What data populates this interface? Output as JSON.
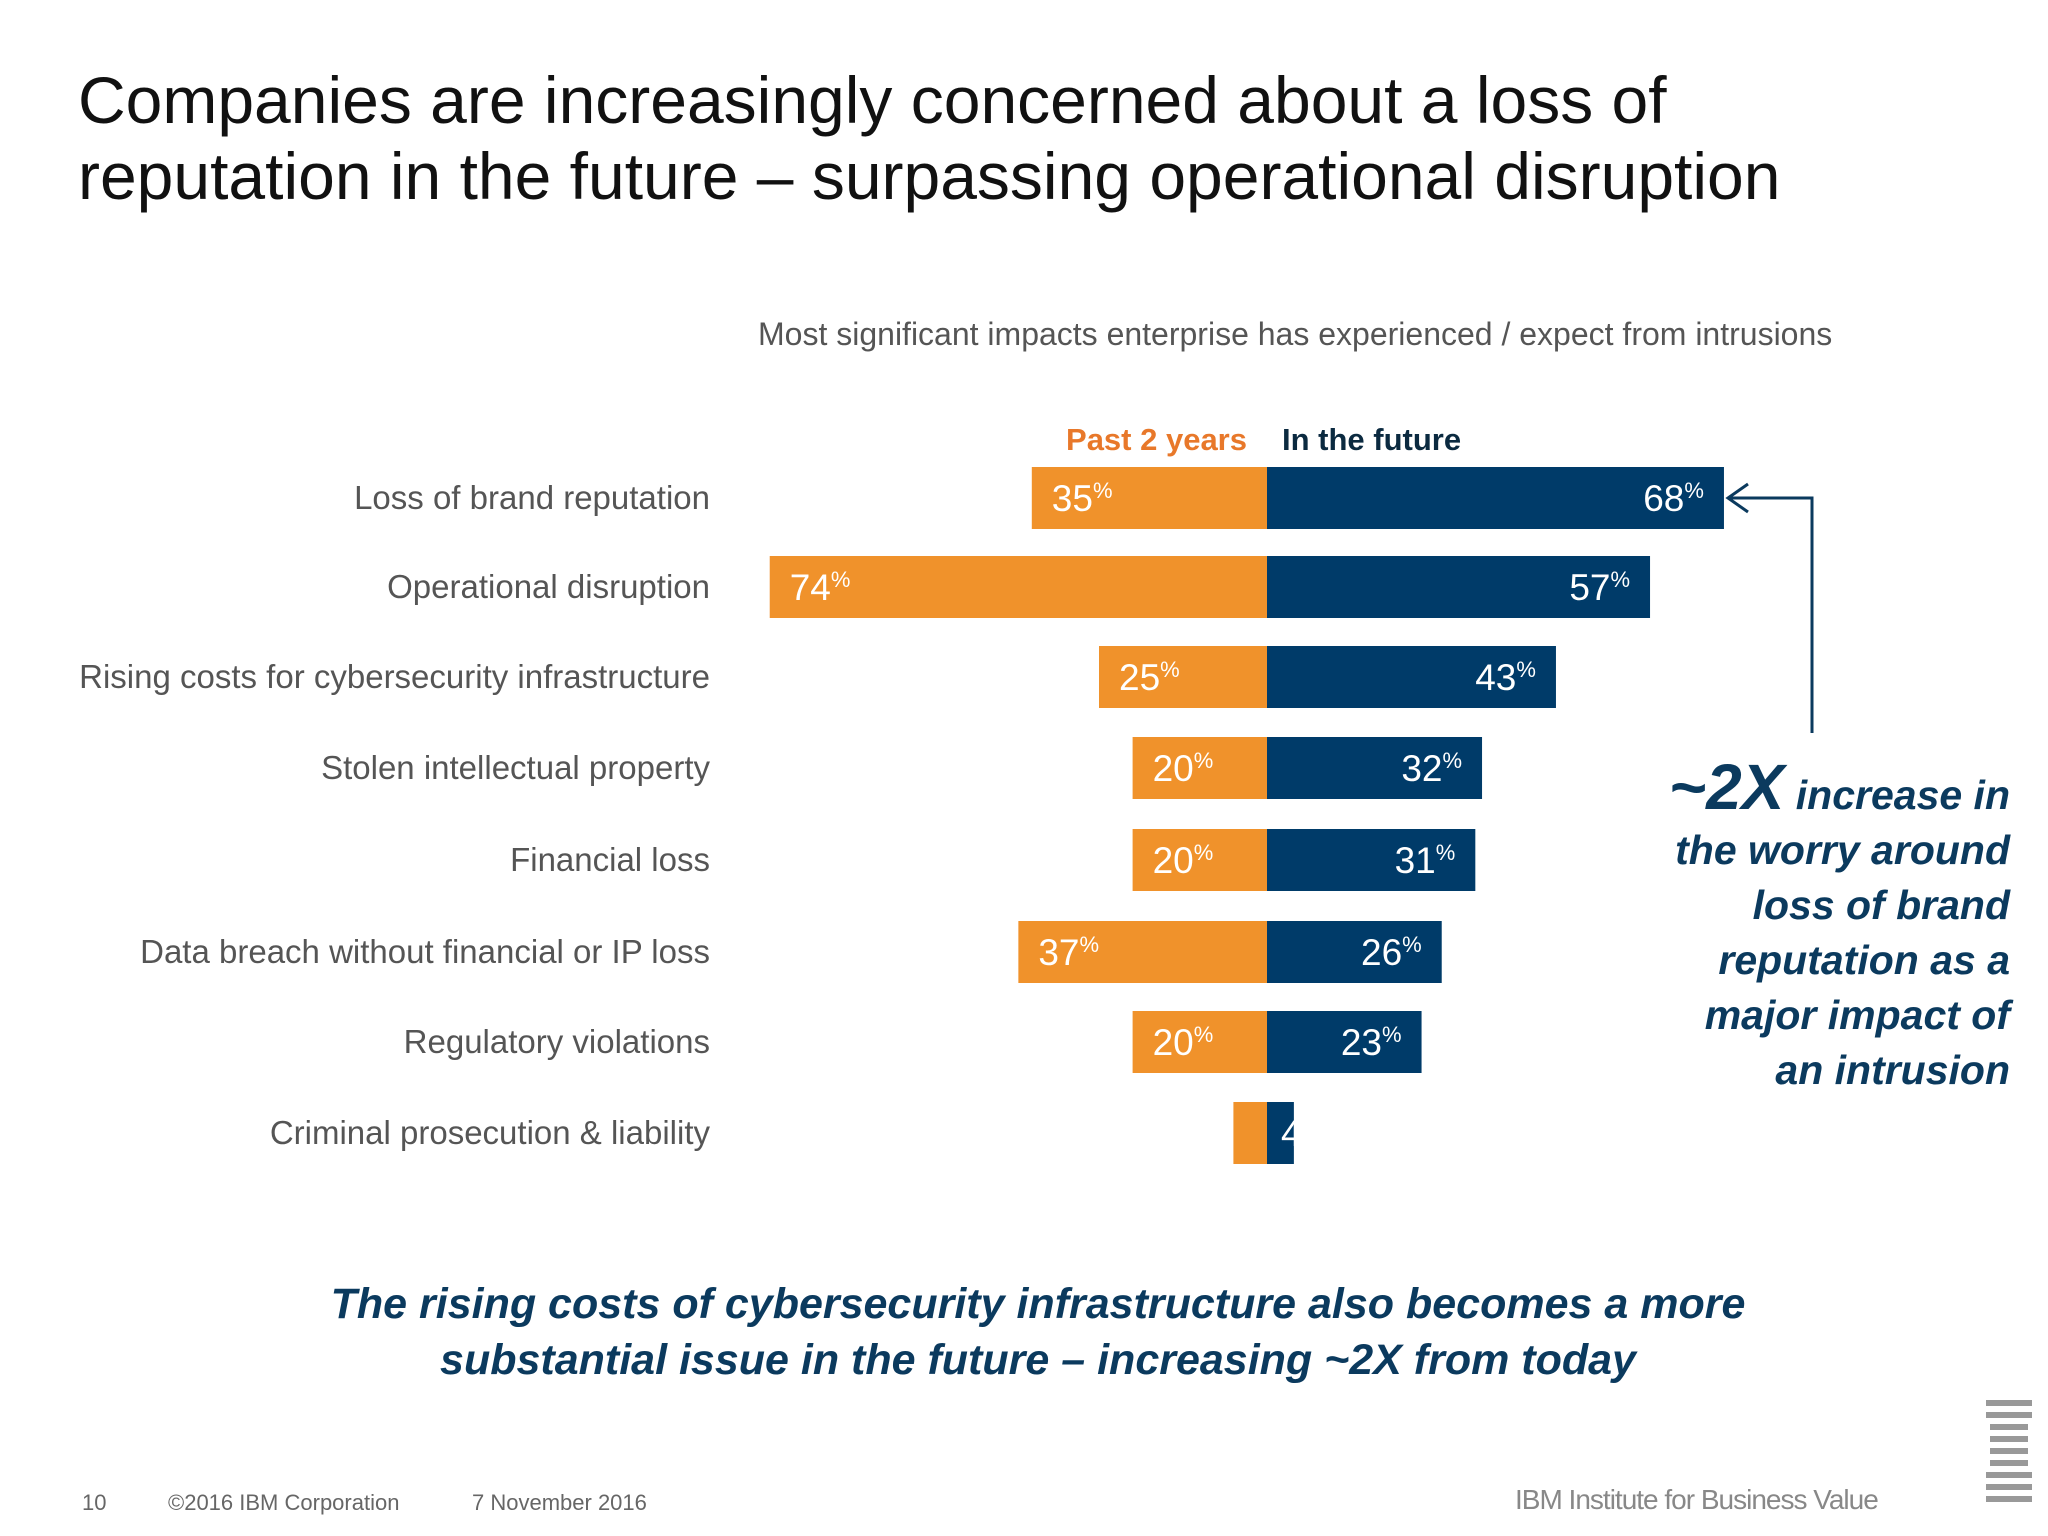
{
  "title_lines": [
    "Companies are increasingly concerned about a loss of",
    "reputation in the future – surpassing operational disruption"
  ],
  "chart_data": {
    "type": "bar",
    "orientation": "horizontal-diverging",
    "title": "Most significant impacts enterprise has experienced / expect from intrusions",
    "categories": [
      "Loss of brand reputation",
      "Operational disruption",
      "Rising costs for cybersecurity infrastructure",
      "Stolen intellectual property",
      "Financial loss",
      "Data breach without financial or IP loss",
      "Regulatory violations",
      "Criminal prosecution & liability"
    ],
    "series": [
      {
        "name": "Past 2 years",
        "color": "#f0922b",
        "values": [
          35,
          74,
          25,
          20,
          20,
          37,
          20,
          5
        ]
      },
      {
        "name": "In the future",
        "color": "#003b69",
        "values": [
          68,
          57,
          43,
          32,
          31,
          26,
          23,
          4
        ]
      }
    ],
    "unit": "%",
    "legend_placement": "top",
    "grid": false
  },
  "annotation": {
    "big": "~2X",
    "lines": [
      "increase in",
      "the worry around",
      "loss of brand",
      "reputation as a",
      "major impact of",
      "an intrusion"
    ]
  },
  "bottom_lines": [
    "The rising costs of cybersecurity infrastructure also becomes a more",
    "substantial issue in the future – increasing ~2X from today"
  ],
  "footer": {
    "page": "10",
    "copyright": "©2016 IBM Corporation",
    "date": "7 November 2016",
    "brand": "IBM Institute for Business Value",
    "logo": "IBM"
  },
  "colors": {
    "past": "#f0922b",
    "future": "#003b69",
    "legend_past": "#e8782a",
    "legend_future": "#0b2a40",
    "annotation": "#0b3a5e"
  }
}
